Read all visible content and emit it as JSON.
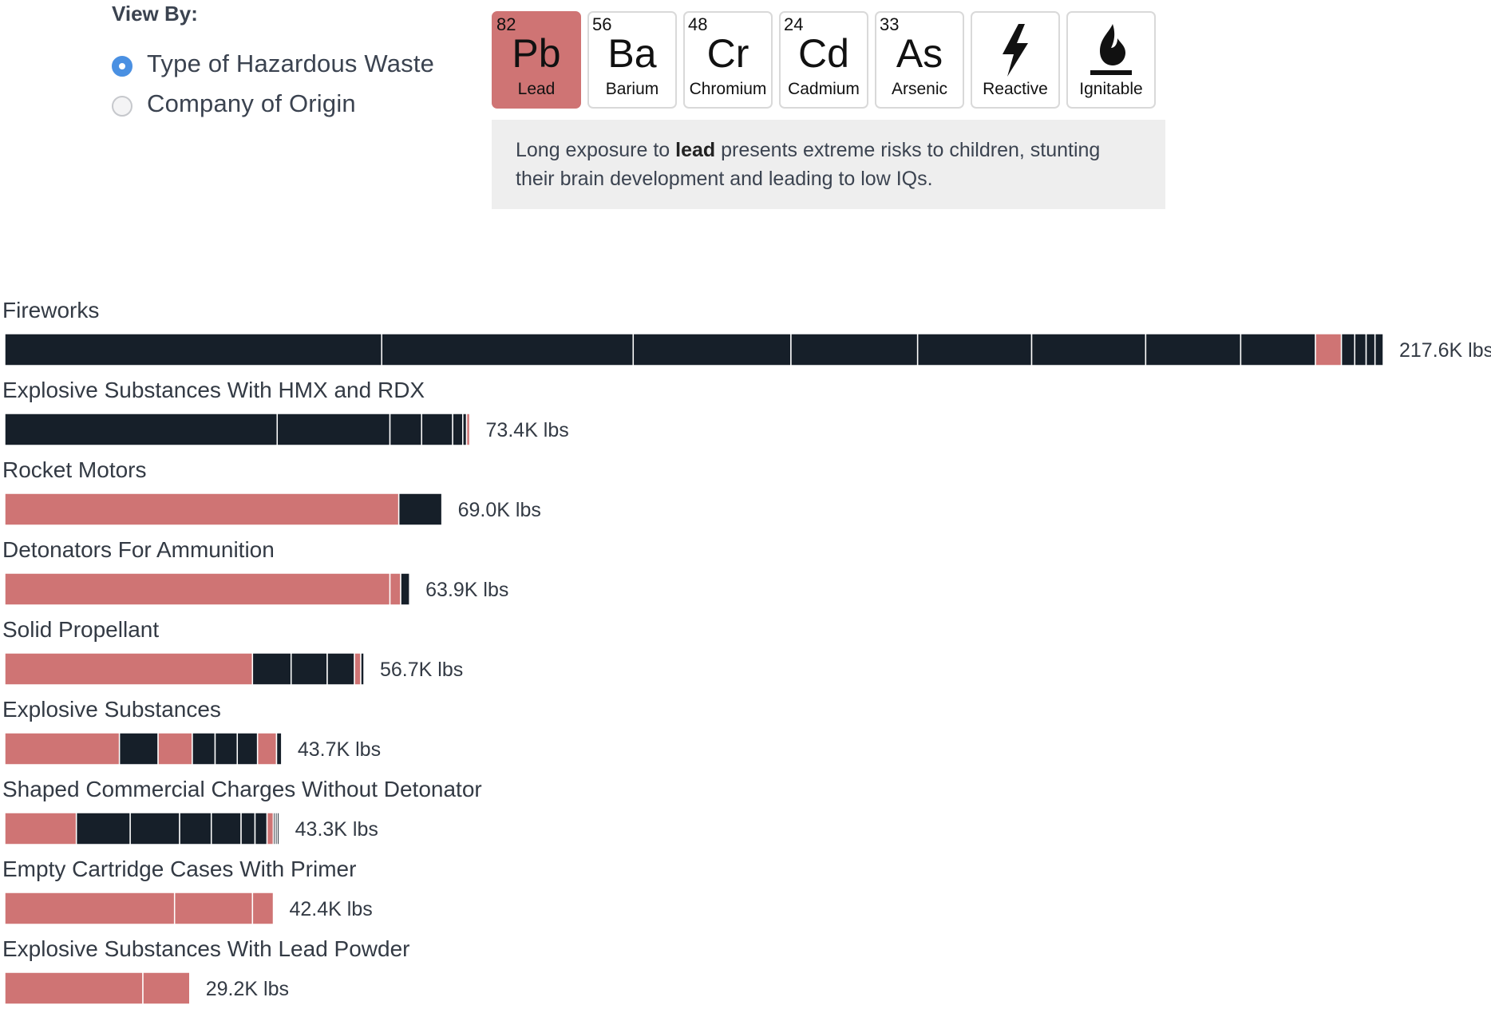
{
  "view_by": {
    "title": "View By:",
    "options": [
      {
        "label": "Type of Hazardous Waste",
        "selected": true
      },
      {
        "label": "Company of Origin",
        "selected": false
      }
    ]
  },
  "elements": [
    {
      "number": "82",
      "symbol": "Pb",
      "name": "Lead",
      "active": true
    },
    {
      "number": "56",
      "symbol": "Ba",
      "name": "Barium",
      "active": false
    },
    {
      "number": "48",
      "symbol": "Cr",
      "name": "Chromium",
      "active": false
    },
    {
      "number": "24",
      "symbol": "Cd",
      "name": "Cadmium",
      "active": false
    },
    {
      "number": "33",
      "symbol": "As",
      "name": "Arsenic",
      "active": false
    },
    {
      "icon": "lightning-bolt-icon",
      "name": "Reactive",
      "active": false
    },
    {
      "icon": "flame-icon",
      "name": "Ignitable",
      "active": false
    }
  ],
  "description": {
    "before": "Long exposure to ",
    "bold": "lead",
    "after": " presents extreme risks to children, stunting their brain development and leading to low IQs."
  },
  "colors": {
    "highlight": "#cf7474",
    "other": "#161f29",
    "divider": "#ffffff"
  },
  "chart_data": {
    "type": "bar",
    "orientation": "horizontal",
    "stacked": true,
    "unit": "lbs",
    "categories": [
      "Fireworks",
      "Explosive Substances With HMX and RDX",
      "Rocket Motors",
      "Detonators For Ammunition",
      "Solid Propellant",
      "Explosive Substances",
      "Shaped Commercial Charges Without Detonator",
      "Empty Cartridge Cases With Primer",
      "Explosive Substances With Lead Powder"
    ],
    "totals": [
      217600,
      73400,
      69000,
      63900,
      56700,
      43700,
      43300,
      42400,
      29200
    ],
    "total_labels": [
      "217.6K lbs",
      "73.4K lbs",
      "69.0K lbs",
      "63.9K lbs",
      "56.7K lbs",
      "43.7K lbs",
      "43.3K lbs",
      "42.4K lbs",
      "29.2K lbs"
    ],
    "segments": [
      [
        {
          "value": 59500,
          "lead": false
        },
        {
          "value": 39700,
          "lead": false
        },
        {
          "value": 24900,
          "lead": false
        },
        {
          "value": 20000,
          "lead": false
        },
        {
          "value": 18000,
          "lead": false
        },
        {
          "value": 18000,
          "lead": false
        },
        {
          "value": 15000,
          "lead": false
        },
        {
          "value": 11800,
          "lead": false
        },
        {
          "value": 4100,
          "lead": true
        },
        {
          "value": 2100,
          "lead": false
        },
        {
          "value": 1800,
          "lead": false
        },
        {
          "value": 1400,
          "lead": false
        },
        {
          "value": 1300,
          "lead": false
        }
      ],
      [
        {
          "value": 43000,
          "lead": false
        },
        {
          "value": 17800,
          "lead": false
        },
        {
          "value": 5000,
          "lead": false
        },
        {
          "value": 4900,
          "lead": false
        },
        {
          "value": 1600,
          "lead": false
        },
        {
          "value": 600,
          "lead": false
        },
        {
          "value": 500,
          "lead": true
        }
      ],
      [
        {
          "value": 62200,
          "lead": true
        },
        {
          "value": 6800,
          "lead": false
        }
      ],
      [
        {
          "value": 60800,
          "lead": true
        },
        {
          "value": 1700,
          "lead": true
        },
        {
          "value": 1400,
          "lead": false
        }
      ],
      [
        {
          "value": 39100,
          "lead": true
        },
        {
          "value": 6100,
          "lead": false
        },
        {
          "value": 5700,
          "lead": false
        },
        {
          "value": 4300,
          "lead": false
        },
        {
          "value": 1000,
          "lead": true
        },
        {
          "value": 500,
          "lead": false
        }
      ],
      [
        {
          "value": 18100,
          "lead": true
        },
        {
          "value": 6100,
          "lead": false
        },
        {
          "value": 5400,
          "lead": true
        },
        {
          "value": 3600,
          "lead": false
        },
        {
          "value": 3500,
          "lead": false
        },
        {
          "value": 3200,
          "lead": false
        },
        {
          "value": 3000,
          "lead": true
        },
        {
          "value": 800,
          "lead": false
        }
      ],
      [
        {
          "value": 11300,
          "lead": true
        },
        {
          "value": 8500,
          "lead": false
        },
        {
          "value": 7800,
          "lead": false
        },
        {
          "value": 5000,
          "lead": false
        },
        {
          "value": 4700,
          "lead": false
        },
        {
          "value": 2200,
          "lead": false
        },
        {
          "value": 1900,
          "lead": false
        },
        {
          "value": 1000,
          "lead": true
        },
        {
          "value": 300,
          "lead": false
        },
        {
          "value": 300,
          "lead": false
        },
        {
          "value": 300,
          "lead": false
        }
      ],
      [
        {
          "value": 26800,
          "lead": true
        },
        {
          "value": 12300,
          "lead": true
        },
        {
          "value": 3300,
          "lead": true
        }
      ],
      [
        {
          "value": 21800,
          "lead": true
        },
        {
          "value": 7400,
          "lead": true
        }
      ]
    ],
    "xlim": [
      0,
      217600
    ]
  }
}
